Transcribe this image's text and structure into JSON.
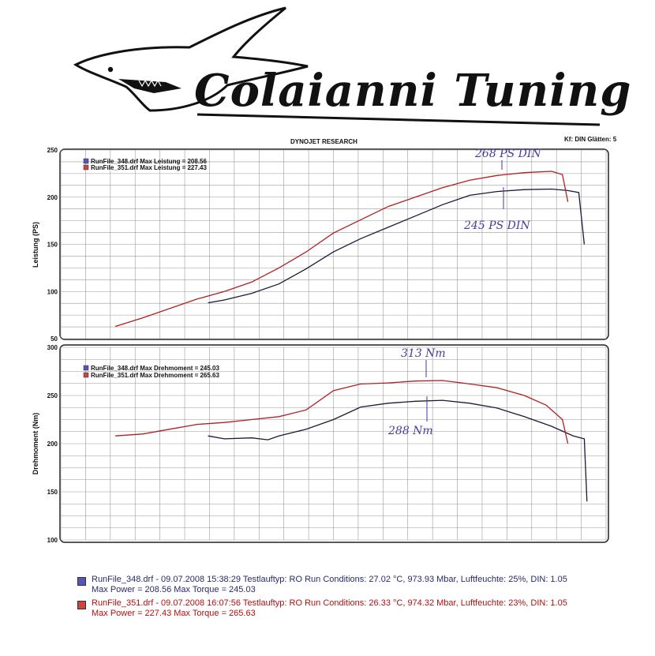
{
  "brand": {
    "name": "Colaianni Tuning"
  },
  "header": {
    "title": "DYNOJET RESEARCH",
    "settings": "Kf: DIN  Glätten: 5"
  },
  "colors": {
    "run348": "#1a1a3a",
    "run351": "#b02020",
    "annotation": "#4a3aa0",
    "grid": "#9a9a9a"
  },
  "chart_data": [
    {
      "type": "line",
      "title": "",
      "xlabel": "",
      "ylabel": "Leistung (PS)",
      "ylim": [
        50,
        250
      ],
      "yticks": [
        50,
        100,
        150,
        200,
        250
      ],
      "grid": true,
      "legend_position": "top-left",
      "legend": [
        "RunFile_348.drf Max Leistung = 208.56",
        "RunFile_351.drf Max Leistung = 227.43"
      ],
      "x_range": [
        0,
        100
      ],
      "series": [
        {
          "name": "RunFile_348.drf",
          "color": "#1a1a3a",
          "x": [
            27,
            30,
            35,
            40,
            45,
            50,
            55,
            60,
            65,
            70,
            75,
            80,
            85,
            90,
            93,
            95,
            96
          ],
          "y": [
            88,
            91,
            98,
            108,
            124,
            142,
            156,
            168,
            180,
            192,
            202,
            206,
            208,
            208.6,
            207,
            205,
            150
          ]
        },
        {
          "name": "RunFile_351.drf",
          "color": "#b02020",
          "x": [
            10,
            15,
            20,
            25,
            30,
            35,
            40,
            45,
            50,
            55,
            60,
            65,
            70,
            75,
            80,
            85,
            90,
            92,
            93
          ],
          "y": [
            63,
            72,
            82,
            92,
            100,
            110,
            125,
            142,
            162,
            176,
            190,
            200,
            210,
            218,
            223,
            226,
            227.4,
            224,
            195
          ]
        }
      ],
      "annotations": [
        "268 PS DIN",
        "245 PS DIN"
      ]
    },
    {
      "type": "line",
      "title": "",
      "xlabel": "",
      "ylabel": "Drehmoment (Nm)",
      "ylim": [
        100,
        300
      ],
      "yticks": [
        100,
        150,
        200,
        250,
        300
      ],
      "grid": true,
      "legend_position": "top-left",
      "legend": [
        "RunFile_348.drf Max Drehmoment = 245.03",
        "RunFile_351.drf Max Drehmoment = 265.63"
      ],
      "x_range": [
        0,
        100
      ],
      "series": [
        {
          "name": "RunFile_348.drf",
          "color": "#1a1a3a",
          "x": [
            27,
            30,
            35,
            38,
            40,
            45,
            50,
            55,
            60,
            65,
            70,
            75,
            80,
            85,
            90,
            94,
            96,
            96.5
          ],
          "y": [
            208,
            205,
            206,
            204,
            208,
            215,
            225,
            238,
            242,
            244,
            245,
            242,
            237,
            228,
            218,
            208,
            205,
            140
          ]
        },
        {
          "name": "RunFile_351.drf",
          "color": "#b02020",
          "x": [
            10,
            15,
            20,
            25,
            30,
            35,
            40,
            45,
            50,
            55,
            60,
            65,
            70,
            75,
            80,
            85,
            89,
            92,
            93
          ],
          "y": [
            208,
            210,
            215,
            220,
            222,
            225,
            228,
            235,
            255,
            262,
            263,
            265,
            265.6,
            262,
            258,
            250,
            240,
            225,
            200
          ]
        }
      ],
      "annotations": [
        "313 Nm",
        "288 Nm"
      ]
    }
  ],
  "legend_box": {
    "run348_line1": "RunFile_348.drf - 09.07.2008 15:38:29  Testlauftyp: RO  Run Conditions: 27.02 °C, 973.93 Mbar,  Luftfeuchte: 25%, DIN: 1.05",
    "run348_line2": "Max Power = 208.56  Max Torque = 245.03",
    "run351_line1": "RunFile_351.drf - 09.07.2008 16:07:56  Testlauftyp: RO  Run Conditions: 26.33 °C, 974.32 Mbar,  Luftfeuchte: 23%, DIN: 1.05",
    "run351_line2": "Max Power = 227.43  Max Torque = 265.63"
  }
}
